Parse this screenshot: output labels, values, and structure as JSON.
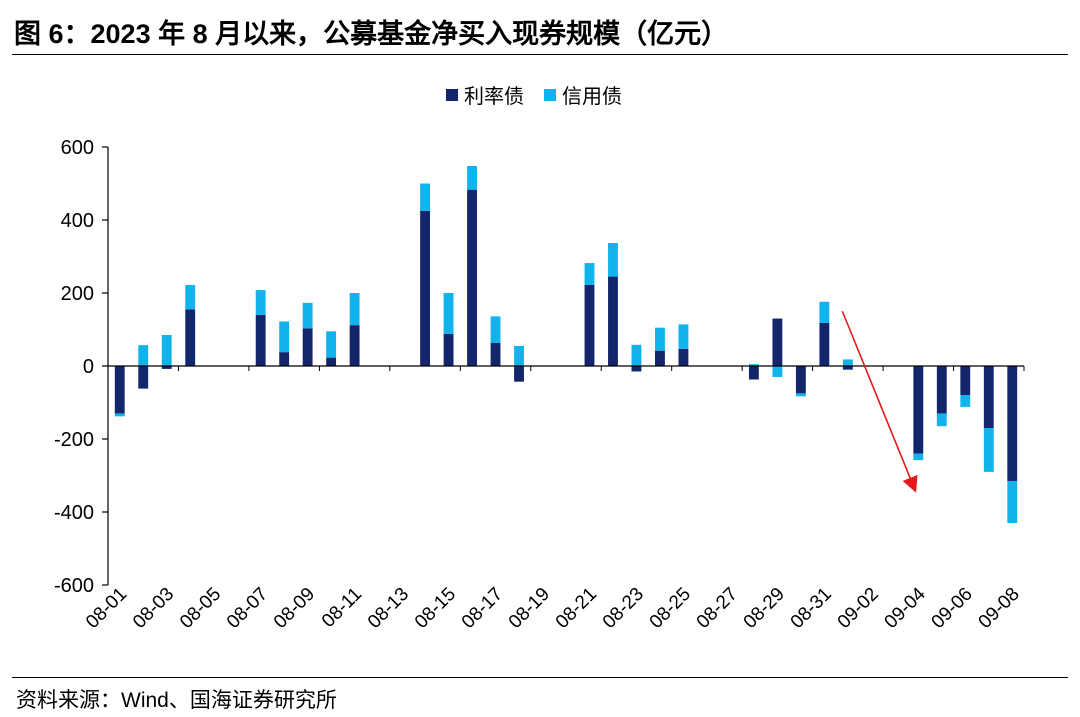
{
  "figure": {
    "title": "图 6：2023 年 8 月以来，公募基金净买入现券规模（亿元）",
    "source": "资料来源：Wind、国海证券研究所"
  },
  "chart_data": {
    "type": "bar",
    "stacked": true,
    "categories": [
      "08-01",
      "08-02",
      "08-03",
      "08-04",
      "08-05",
      "08-06",
      "08-07",
      "08-08",
      "08-09",
      "08-10",
      "08-11",
      "08-12",
      "08-13",
      "08-14",
      "08-15",
      "08-16",
      "08-17",
      "08-18",
      "08-19",
      "08-20",
      "08-21",
      "08-22",
      "08-23",
      "08-24",
      "08-25",
      "08-26",
      "08-27",
      "08-28",
      "08-29",
      "08-30",
      "08-31",
      "09-01",
      "09-02",
      "09-03",
      "09-04",
      "09-05",
      "09-06",
      "09-07",
      "09-08"
    ],
    "x_tick_labels": [
      "08-01",
      "08-03",
      "08-05",
      "08-07",
      "08-09",
      "08-11",
      "08-13",
      "08-15",
      "08-17",
      "08-19",
      "08-21",
      "08-23",
      "08-25",
      "08-27",
      "08-29",
      "08-31",
      "09-02",
      "09-04",
      "09-06",
      "09-08"
    ],
    "series": [
      {
        "name": "利率债",
        "color": "#14266b",
        "values": [
          -130,
          -62,
          -8,
          155,
          0,
          0,
          140,
          38,
          103,
          23,
          112,
          0,
          0,
          425,
          88,
          483,
          63,
          -43,
          0,
          0,
          222,
          245,
          -15,
          42,
          47,
          0,
          0,
          -37,
          130,
          -75,
          118,
          -10,
          0,
          0,
          -240,
          -130,
          -80,
          -170,
          -315
        ]
      },
      {
        "name": "信用债",
        "color": "#10b3ec",
        "values": [
          -8,
          57,
          85,
          67,
          0,
          0,
          68,
          84,
          70,
          72,
          88,
          0,
          0,
          75,
          112,
          65,
          73,
          55,
          0,
          0,
          60,
          92,
          58,
          63,
          67,
          0,
          0,
          5,
          -30,
          -8,
          58,
          18,
          0,
          0,
          -18,
          -35,
          -32,
          -120,
          -115
        ]
      }
    ],
    "ylim": [
      -600,
      600
    ],
    "yticks": [
      -600,
      -400,
      -200,
      0,
      200,
      400,
      600
    ],
    "xlabel": "",
    "ylabel": "",
    "legend_position": "top-center",
    "annotation": {
      "type": "arrow",
      "color": "#e31a1c",
      "from_category": "08-31",
      "to_category": "09-04",
      "meaning": "downward trend"
    }
  }
}
